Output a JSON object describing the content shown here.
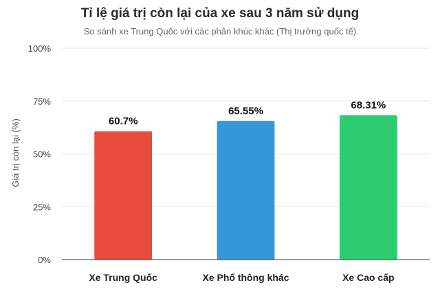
{
  "chart_data": {
    "type": "bar",
    "title": "Tỉ lệ giá trị còn lại của xe sau 3 năm sử dụng",
    "subtitle": "So sánh xe Trung Quốc với các phân khúc khác (Thị trường quốc tế)",
    "ylabel": "Giá trị còn lại (%)",
    "xlabel": "",
    "categories": [
      "Xe Trung Quốc",
      "Xe Phổ thông khác",
      "Xe Cao cấp"
    ],
    "values": [
      60.7,
      65.55,
      68.31
    ],
    "data_labels": [
      "60.7%",
      "65.55%",
      "68.31%"
    ],
    "colors": [
      "#e74c3c",
      "#3498db",
      "#2ecc71"
    ],
    "ylim": [
      0,
      100
    ],
    "yticks": [
      0,
      25,
      50,
      75,
      100
    ],
    "ytick_labels": [
      "0%",
      "25%",
      "50%",
      "75%",
      "100%"
    ],
    "grid": true,
    "legend": "none"
  }
}
